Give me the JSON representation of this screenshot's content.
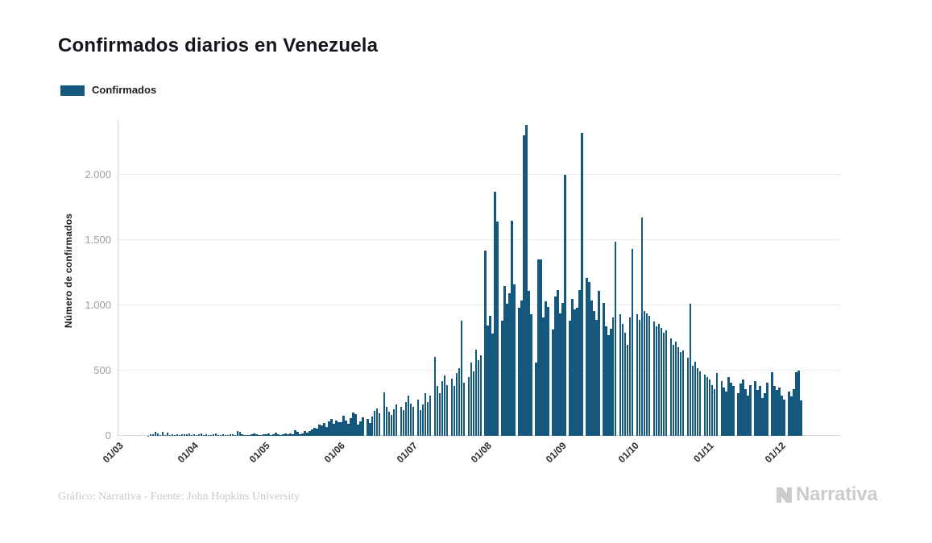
{
  "title": "Confirmados diarios en Venezuela",
  "legend": {
    "label": "Confirmados",
    "color": "#15587e"
  },
  "footer": {
    "credit": "Gráfico: Narrativa - Fuente: John Hopkins University",
    "brand": "Narrativa"
  },
  "chart_data": {
    "type": "bar",
    "title": "Confirmados diarios en Venezuela",
    "xlabel": "",
    "ylabel": "Número de confirmados",
    "series_name": "Confirmados",
    "bar_color": "#15587e",
    "grid": "horizontal",
    "legend_position": "top-left",
    "x_start_label": "01/03",
    "x_unit": "day",
    "ylim": [
      0,
      2426
    ],
    "y_ticks": [
      {
        "value": 0,
        "label": "0"
      },
      {
        "value": 500,
        "label": "500"
      },
      {
        "value": 1000,
        "label": "1.000"
      },
      {
        "value": 1500,
        "label": "1.500"
      },
      {
        "value": 2000,
        "label": "2.000"
      }
    ],
    "x_ticks": [
      {
        "label": "01/03",
        "day": 0
      },
      {
        "label": "01/04",
        "day": 31
      },
      {
        "label": "01/05",
        "day": 61
      },
      {
        "label": "01/06",
        "day": 92
      },
      {
        "label": "01/07",
        "day": 122
      },
      {
        "label": "01/08",
        "day": 153
      },
      {
        "label": "01/09",
        "day": 184
      },
      {
        "label": "01/10",
        "day": 214
      },
      {
        "label": "01/11",
        "day": 245
      },
      {
        "label": "01/12",
        "day": 275
      }
    ],
    "values": [
      0,
      0,
      0,
      0,
      0,
      0,
      0,
      0,
      0,
      0,
      0,
      0,
      2,
      15,
      10,
      33,
      16,
      7,
      34,
      6,
      22,
      9,
      13,
      7,
      15,
      9,
      10,
      12,
      10,
      16,
      8,
      14,
      8,
      10,
      16,
      6,
      11,
      9,
      5,
      10,
      21,
      7,
      9,
      12,
      6,
      9,
      14,
      11,
      5,
      36,
      30,
      10,
      4,
      9,
      7,
      13,
      17,
      10,
      6,
      9,
      11,
      12,
      18,
      9,
      15,
      22,
      11,
      8,
      14,
      20,
      12,
      16,
      10,
      45,
      30,
      14,
      20,
      38,
      26,
      35,
      48,
      61,
      56,
      88,
      80,
      96,
      70,
      110,
      131,
      95,
      120,
      107,
      104,
      156,
      120,
      90,
      135,
      180,
      165,
      88,
      110,
      145,
      0,
      130,
      96,
      150,
      190,
      210,
      175,
      0,
      334,
      225,
      185,
      160,
      205,
      240,
      0,
      220,
      196,
      260,
      310,
      245,
      221,
      0,
      280,
      196,
      240,
      325,
      260,
      310,
      0,
      602,
      380,
      330,
      420,
      465,
      390,
      0,
      436,
      380,
      480,
      521,
      882,
      410,
      0,
      450,
      560,
      495,
      660,
      580,
      620,
      0,
      1420,
      845,
      920,
      785,
      1870,
      1640,
      0,
      880,
      1150,
      1010,
      1090,
      1650,
      1160,
      0,
      980,
      1040,
      2304,
      2380,
      1110,
      930,
      0,
      560,
      1350,
      1355,
      905,
      1030,
      985,
      0,
      815,
      1070,
      1120,
      940,
      1020,
      1998,
      0,
      880,
      1050,
      970,
      980,
      1120,
      2320,
      0,
      1210,
      1180,
      1040,
      960,
      890,
      1110,
      0,
      1020,
      840,
      770,
      820,
      905,
      1490,
      0,
      930,
      860,
      790,
      700,
      910,
      1430,
      0,
      930,
      890,
      1670,
      955,
      940,
      920,
      0,
      875,
      840,
      860,
      830,
      790,
      810,
      0,
      745,
      700,
      725,
      680,
      640,
      655,
      0,
      600,
      1012,
      540,
      570,
      520,
      495,
      0,
      470,
      450,
      430,
      390,
      360,
      480,
      0,
      420,
      370,
      340,
      450,
      410,
      380,
      0,
      330,
      400,
      430,
      360,
      310,
      390,
      0,
      420,
      350,
      380,
      290,
      330,
      410,
      0,
      490,
      380,
      350,
      370,
      310,
      280,
      0,
      340,
      300,
      360,
      490,
      500,
      270
    ]
  }
}
